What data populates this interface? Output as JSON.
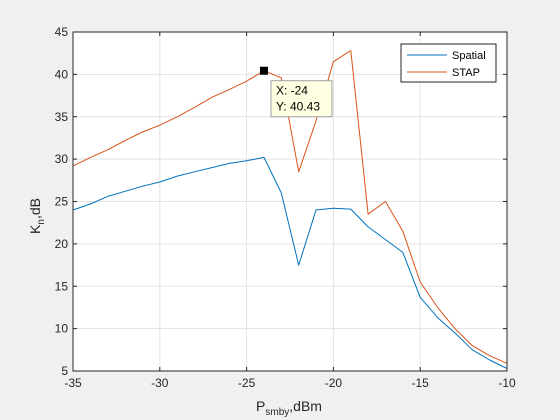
{
  "chart_data": {
    "type": "line",
    "title": "",
    "xlim": [
      -35,
      -10
    ],
    "ylim": [
      5,
      45
    ],
    "xticks": [
      -35,
      -30,
      -25,
      -20,
      -15,
      -10
    ],
    "yticks": [
      5,
      10,
      15,
      20,
      25,
      30,
      35,
      40,
      45
    ],
    "grid": true,
    "legend_placement": "top-right",
    "series": [
      {
        "name": "Spatial",
        "color": "#0072BD",
        "x": [
          -35,
          -34,
          -33,
          -32,
          -31,
          -30,
          -29,
          -28,
          -27,
          -26,
          -25,
          -24,
          -23,
          -22,
          -21,
          -20,
          -19,
          -18,
          -17,
          -16,
          -15,
          -14,
          -13,
          -12,
          -11,
          -10
        ],
        "y": [
          24.0,
          24.7,
          25.6,
          26.2,
          26.8,
          27.3,
          28.0,
          28.5,
          29.0,
          29.5,
          29.8,
          30.2,
          26.0,
          17.5,
          24.0,
          24.2,
          24.1,
          22.0,
          20.5,
          19.0,
          13.7,
          11.3,
          9.5,
          7.5,
          6.3,
          5.3
        ]
      },
      {
        "name": "STAP",
        "color": "#D95319",
        "x": [
          -35,
          -34,
          -33,
          -32,
          -31,
          -30,
          -29,
          -28,
          -27,
          -26,
          -25,
          -24,
          -23,
          -22,
          -21,
          -20,
          -19,
          -18,
          -17,
          -16,
          -15,
          -14,
          -13,
          -12,
          -11,
          -10
        ],
        "y": [
          29.2,
          30.2,
          31.1,
          32.2,
          33.2,
          34.0,
          35.0,
          36.1,
          37.3,
          38.2,
          39.2,
          40.43,
          39.6,
          28.5,
          34.5,
          41.5,
          42.8,
          23.5,
          25.0,
          21.5,
          15.5,
          12.5,
          10.0,
          8.0,
          6.8,
          5.9
        ]
      }
    ],
    "datatip": {
      "series": "STAP",
      "x": -24,
      "y": 40.43,
      "x_text": "X: -24",
      "y_text": "Y: 40.43"
    }
  },
  "labels": {
    "xlabel_main": "P",
    "xlabel_sub": "smby",
    "xlabel_rest": ",dBm",
    "ylabel_main": "K",
    "ylabel_sub": "n",
    "ylabel_rest": ",dB"
  },
  "colors": {
    "figure_bg": "#f0f0f0",
    "axes_bg": "#ffffff",
    "grid": "#e3e3e3",
    "axis": "#262626",
    "tip_bg": "#ffffe1"
  }
}
